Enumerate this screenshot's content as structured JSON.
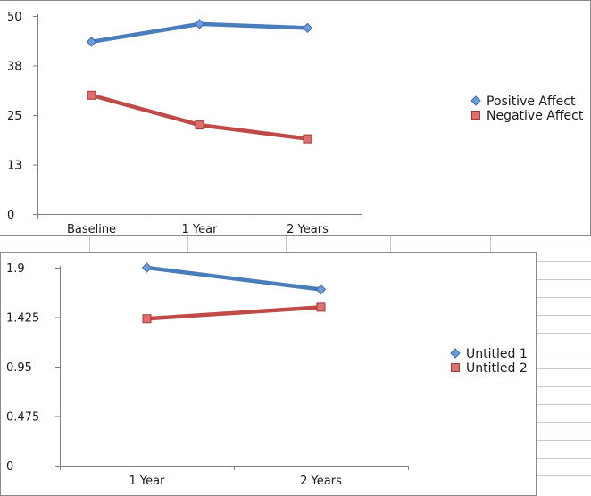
{
  "chart_data": [
    {
      "type": "line",
      "categories": [
        "Baseline",
        "1 Year",
        "2 Years"
      ],
      "series": [
        {
          "name": "Positive Affect",
          "values": [
            43.5,
            48,
            47
          ],
          "color": "#4a7ebb",
          "marker": "diamond"
        },
        {
          "name": "Negative Affect",
          "values": [
            30,
            22.5,
            19
          ],
          "color": "#be4b48",
          "marker": "square"
        }
      ],
      "yticks": [
        "50",
        "38",
        "25",
        "13",
        "0"
      ],
      "ylim": [
        0,
        50
      ],
      "legend": "right",
      "grid": false
    },
    {
      "type": "line",
      "categories": [
        "1 Year",
        "2 Years"
      ],
      "series": [
        {
          "name": "Untitled 1",
          "values": [
            1.9,
            1.69
          ],
          "color": "#4a7ebb",
          "marker": "diamond"
        },
        {
          "name": "Untitled 2",
          "values": [
            1.41,
            1.52
          ],
          "color": "#be4b48",
          "marker": "square"
        }
      ],
      "yticks": [
        "1.9",
        "1.425",
        "0.95",
        "0.475",
        "0"
      ],
      "ylim": [
        0,
        1.9
      ],
      "legend": "right",
      "grid": false
    }
  ]
}
